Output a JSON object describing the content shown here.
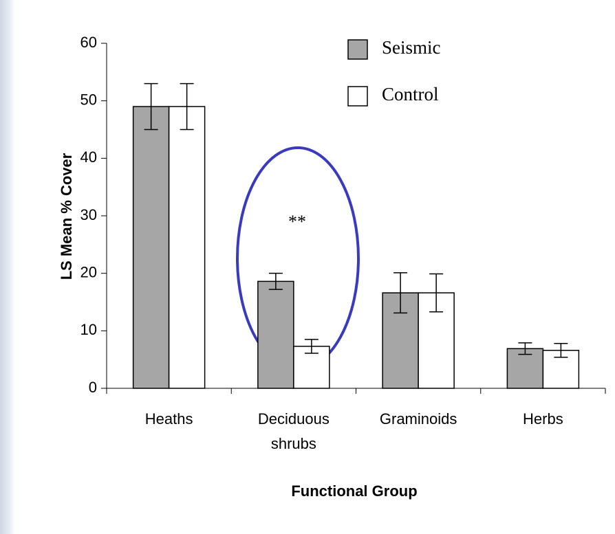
{
  "chart_data": {
    "type": "bar",
    "categories": [
      "Heaths",
      "Deciduous shrubs",
      "Graminoids",
      "Herbs"
    ],
    "series": [
      {
        "name": "Seismic",
        "color": "#a6a6a6",
        "values": [
          49,
          18.6,
          16.6,
          6.9
        ],
        "errors": [
          4,
          1.4,
          3.5,
          1
        ]
      },
      {
        "name": "Control",
        "color": "#ffffff",
        "values": [
          49,
          7.3,
          16.6,
          6.6
        ],
        "errors": [
          4,
          1.2,
          3.3,
          1.2
        ]
      }
    ],
    "ylim": [
      0,
      60
    ],
    "yticks": [
      0,
      10,
      20,
      30,
      40,
      50,
      60
    ],
    "ylabel": "LS Mean % Cover",
    "xlabel": "Functional Group",
    "annotation": "**",
    "legend": "top-right"
  }
}
